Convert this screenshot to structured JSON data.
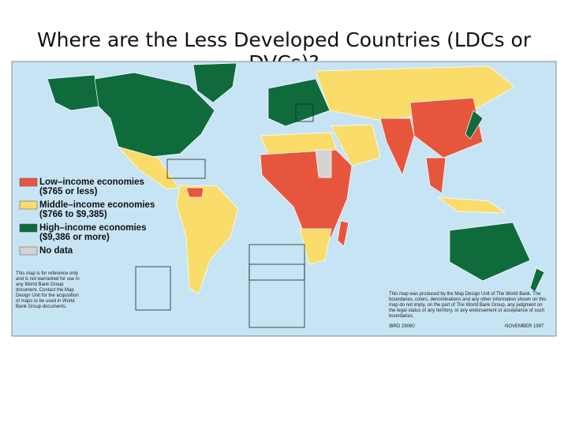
{
  "title": "Where are the Less Developed Countries (LDCs or DVCs)?",
  "legend": [
    {
      "label": "Low–income economies",
      "range": "($765 or less)",
      "color": "#e8553d"
    },
    {
      "label": "Middle–income economies",
      "range": "($766 to $9,385)",
      "color": "#f9dc6a"
    },
    {
      "label": "High–income economies",
      "range": "($9,386 or more)",
      "color": "#0f6b3c"
    },
    {
      "label": "No data",
      "color": "#d3d3d3"
    }
  ],
  "notes": {
    "left": "This map is for reference only and is not warranted for use in any World Bank Group document. Contact the Map Design Unit for the acquisition of maps to be used in World Bank Group documents.",
    "right": "This map was produced by the Map Design Unit of The World Bank. The boundaries, colors, denominations and any other information shown on this map do not imply, on the part of The World Bank Group, any judgment on the legal status of any territory, or any endorsement or acceptance of such boundaries.",
    "code": "IBRD 29060",
    "date": "NOVEMBER 1997"
  }
}
